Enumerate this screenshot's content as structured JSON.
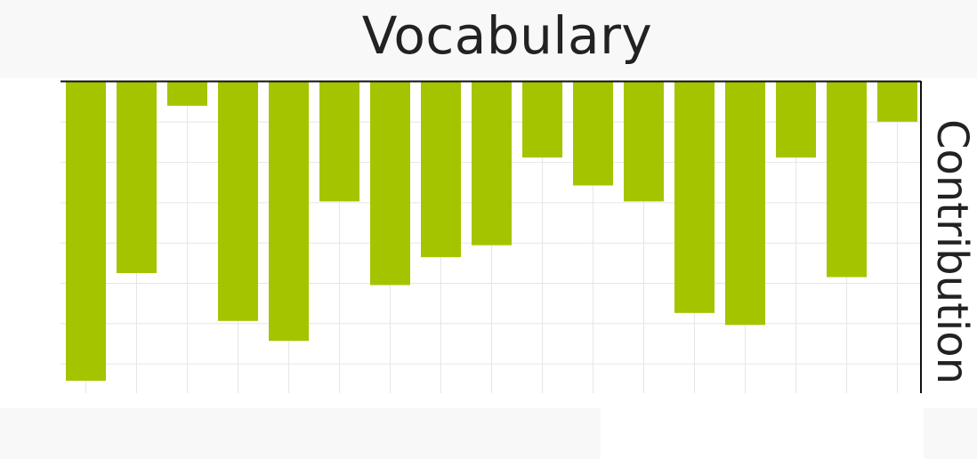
{
  "chart_data": {
    "type": "bar",
    "title": "Vocabulary",
    "xlabel": "",
    "ylabel": "Contribution",
    "categories": [
      "",
      "",
      "",
      "",
      "",
      "",
      "",
      "",
      "",
      "",
      "",
      "",
      "",
      "",
      "",
      "",
      ""
    ],
    "values": [
      -7.5,
      -4.8,
      -0.6,
      -6.0,
      -6.5,
      -3.0,
      -5.1,
      -4.4,
      -4.1,
      -1.9,
      -2.6,
      -3.0,
      -5.8,
      -6.1,
      -1.9,
      -4.9,
      -1.0
    ],
    "ylim": [
      -7.8,
      0
    ],
    "grid": true,
    "legend": "none",
    "bar_color": "#a5c400",
    "axis_color": "#111111",
    "grid_color": "#e6e6e6"
  }
}
